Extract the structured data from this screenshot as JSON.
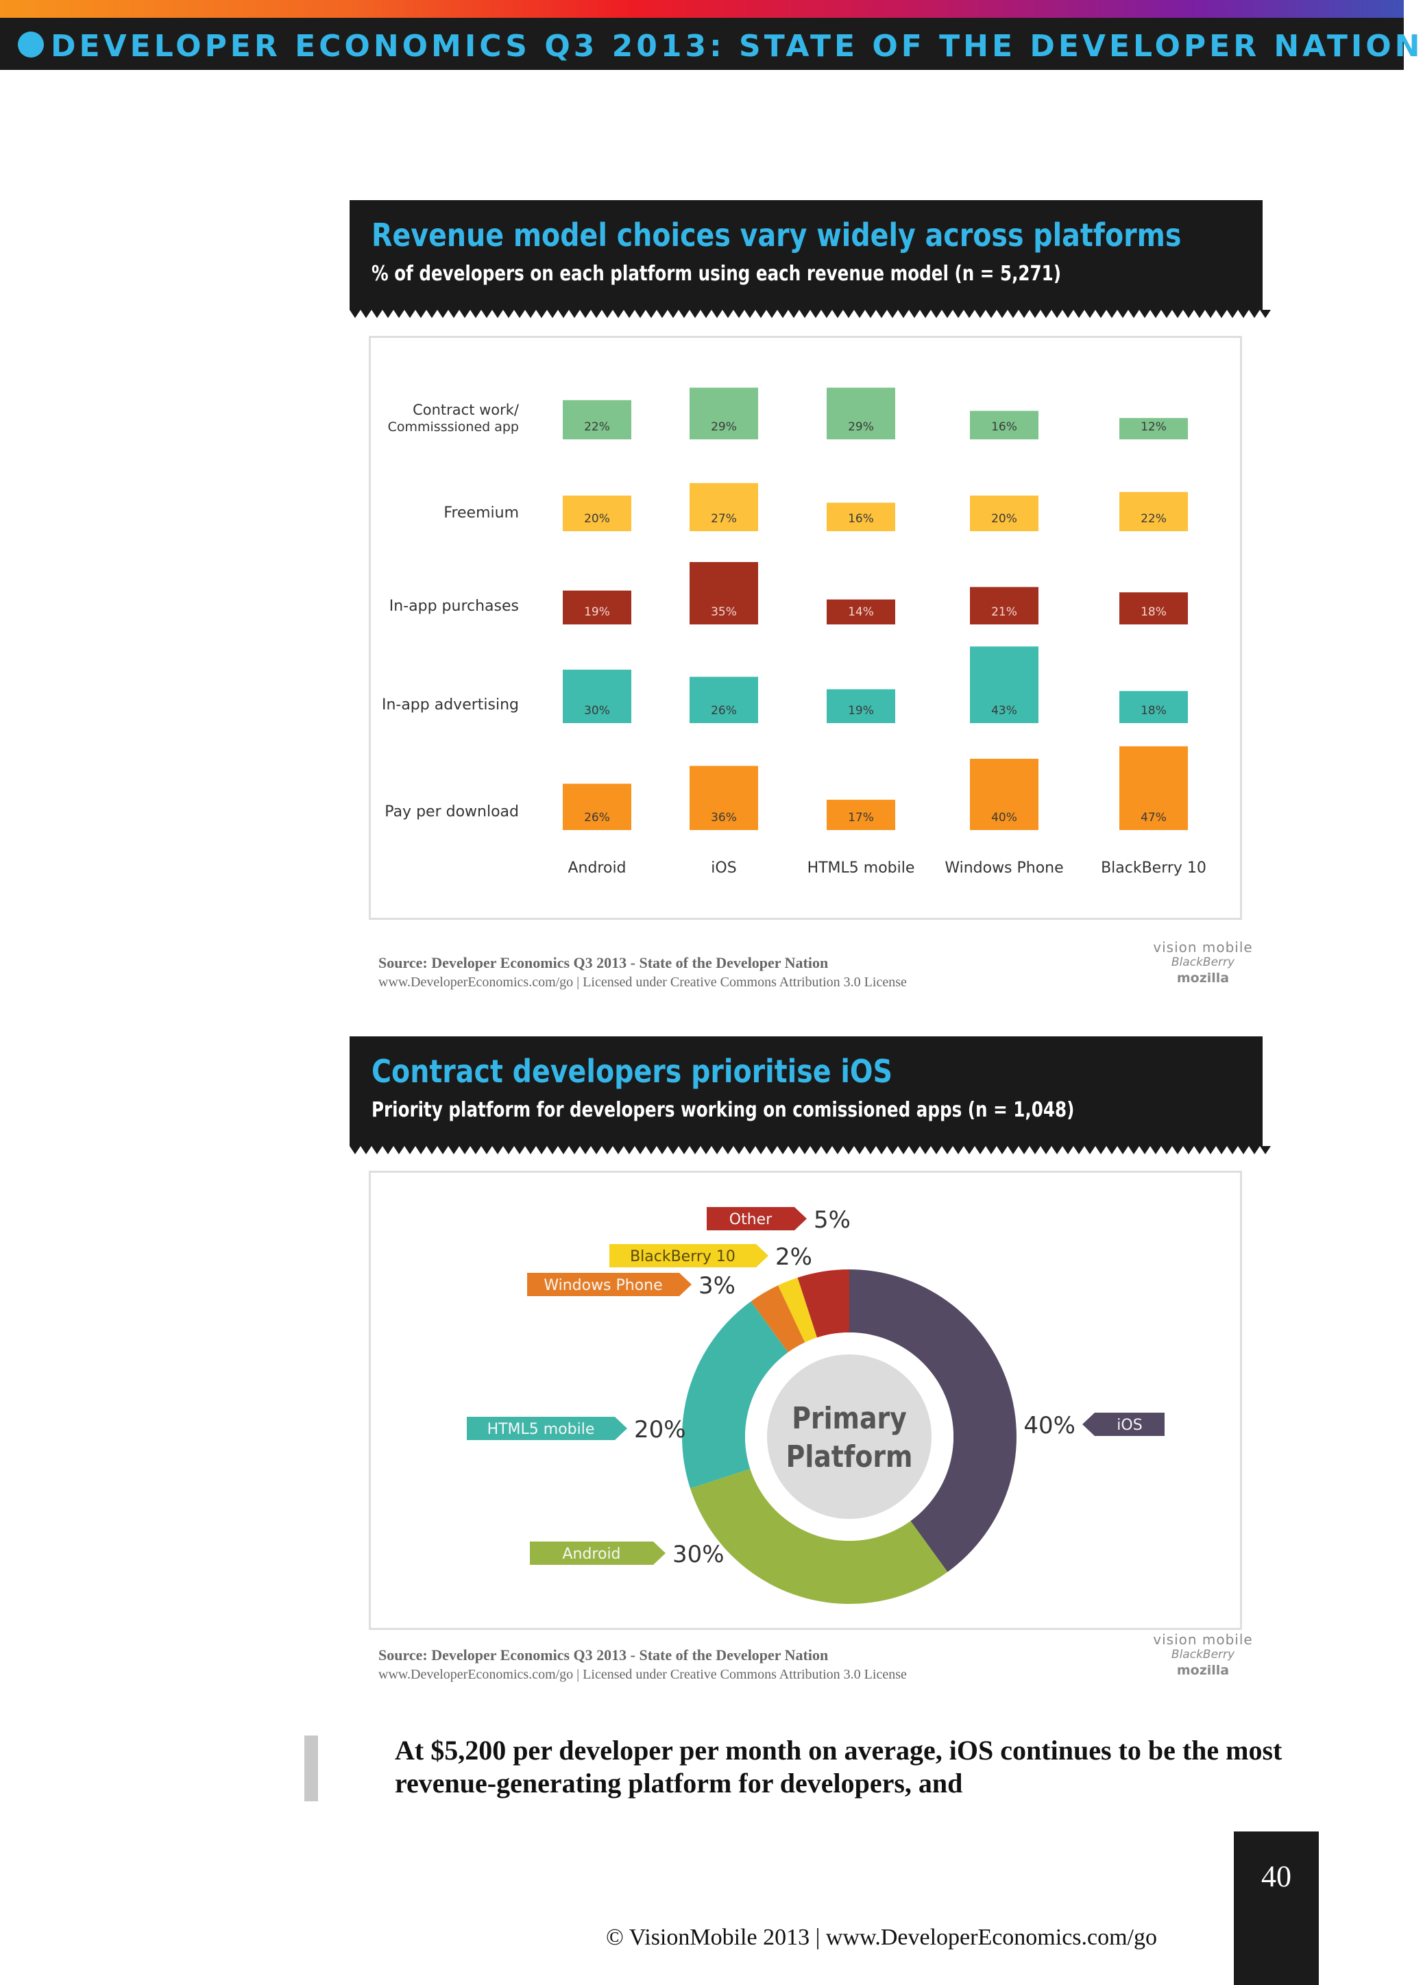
{
  "header": {
    "title": "DEVELOPER ECONOMICS Q3 2013: STATE OF THE DEVELOPER NATION"
  },
  "panel1": {
    "title": "Revenue model choices vary widely across platforms",
    "subtitle": "% of developers on each platform using each revenue model (n = 5,271)",
    "source_line1": "Source: Developer Economics Q3 2013 - State of the Developer Nation",
    "source_line2": "www.DeveloperEconomics.com/go | Licensed under Creative Commons Attribution 3.0 License"
  },
  "panel2": {
    "title": "Contract developers prioritise iOS",
    "subtitle": "Priority platform for developers working on comissioned apps (n = 1,048)",
    "source_line1": "Source: Developer Economics Q3 2013 - State of the Developer Nation",
    "source_line2": "www.DeveloperEconomics.com/go | Licensed under Creative Commons Attribution 3.0 License"
  },
  "logos": {
    "vision": "vision mobile",
    "blackberry": "BlackBerry",
    "mozilla": "mozilla"
  },
  "chart_data": [
    {
      "type": "bar",
      "title": "Revenue model choices vary widely across platforms",
      "subtitle": "% of developers on each platform using each revenue model (n = 5,271)",
      "categories": [
        "Android",
        "iOS",
        "HTML5 mobile",
        "Windows Phone",
        "BlackBerry 10"
      ],
      "series": [
        {
          "name": "Contract work/ Commisssioned app",
          "label_line1": "Contract work/",
          "label_line2": "Commisssioned app",
          "color": "#7ec48c",
          "values": [
            22,
            29,
            29,
            16,
            12
          ]
        },
        {
          "name": "Freemium",
          "color": "#fdc13c",
          "values": [
            20,
            27,
            16,
            20,
            22
          ]
        },
        {
          "name": "In-app purchases",
          "color": "#a3301f",
          "values": [
            19,
            35,
            14,
            21,
            18
          ]
        },
        {
          "name": "In-app advertising",
          "color": "#3fbcae",
          "values": [
            30,
            26,
            19,
            43,
            18
          ]
        },
        {
          "name": "Pay per download",
          "color": "#f7931e",
          "values": [
            26,
            36,
            17,
            40,
            47
          ]
        }
      ],
      "value_suffix": "%"
    },
    {
      "type": "pie",
      "title": "Contract developers prioritise iOS",
      "subtitle": "Priority platform for developers working on comissioned apps (n = 1,048)",
      "center_label_line1": "Primary",
      "center_label_line2": "Platform",
      "slices": [
        {
          "name": "iOS",
          "value": 40,
          "label": "40%",
          "color": "#544a63"
        },
        {
          "name": "Android",
          "value": 30,
          "label": "30%",
          "color": "#98b443"
        },
        {
          "name": "HTML5 mobile",
          "value": 20,
          "label": "20%",
          "color": "#3fb6a8"
        },
        {
          "name": "Windows Phone",
          "value": 3,
          "label": "3%",
          "color": "#e57c25"
        },
        {
          "name": "BlackBerry 10",
          "value": 2,
          "label": "2%",
          "color": "#f5d31e"
        },
        {
          "name": "Other",
          "value": 5,
          "label": "5%",
          "color": "#b52f26"
        }
      ]
    }
  ],
  "body": {
    "quote": "At $5,200 per developer per month on average, iOS continues to be the most revenue-generating platform for developers, and"
  },
  "footer": {
    "text": "© VisionMobile 2013 | www.DeveloperEconomics.com/go",
    "page_number": "40"
  }
}
